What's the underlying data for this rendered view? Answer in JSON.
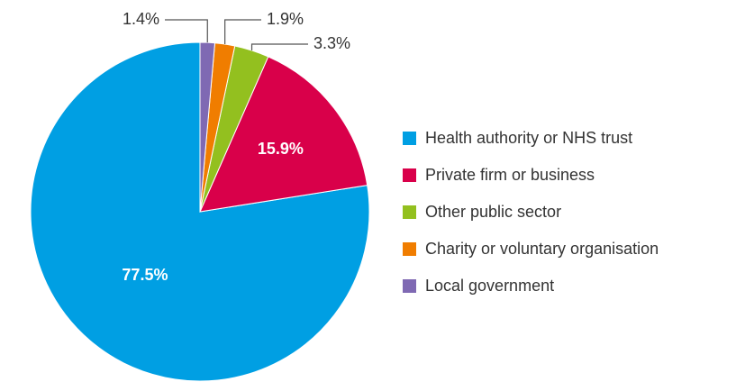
{
  "chart_data": {
    "type": "pie",
    "categories": [
      "Health authority or NHS trust",
      "Private firm or business",
      "Other public sector",
      "Charity or voluntary organisation",
      "Local government"
    ],
    "values": [
      77.5,
      15.9,
      3.3,
      1.9,
      1.4
    ],
    "value_labels": [
      "77.5%",
      "15.9%",
      "3.3%",
      "1.9%",
      "1.4%"
    ],
    "colors": [
      "#009fe3",
      "#d9004a",
      "#93c01f",
      "#f07d00",
      "#7f69b3"
    ],
    "legend": "right"
  }
}
